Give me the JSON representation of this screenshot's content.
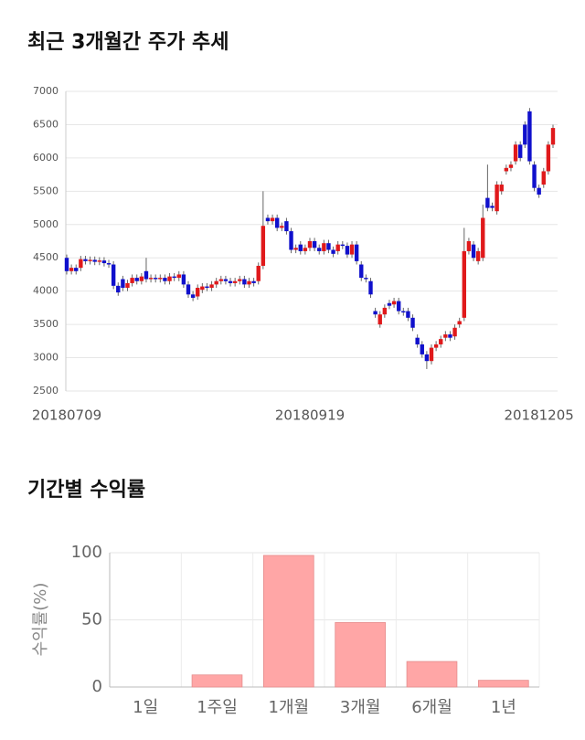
{
  "chart_data": [
    {
      "type": "candlestick",
      "title": "최근 3개월간 주가 추세",
      "categories": [
        "20180709",
        null,
        null,
        null,
        null,
        null,
        null,
        null,
        null,
        null,
        null,
        null,
        null,
        null,
        null,
        null,
        null,
        null,
        null,
        null,
        null,
        null,
        null,
        null,
        null,
        null,
        null,
        null,
        null,
        null,
        null,
        null,
        null,
        null,
        null,
        null,
        null,
        null,
        null,
        null,
        null,
        null,
        null,
        null,
        null,
        null,
        null,
        null,
        null,
        null,
        null,
        null,
        "20180919",
        null,
        null,
        null,
        null,
        null,
        null,
        null,
        null,
        null,
        null,
        null,
        null,
        null,
        null,
        null,
        null,
        null,
        null,
        null,
        null,
        null,
        null,
        null,
        null,
        null,
        null,
        null,
        null,
        null,
        null,
        null,
        null,
        null,
        null,
        null,
        null,
        null,
        null,
        null,
        null,
        null,
        null,
        null,
        null,
        null,
        null,
        null,
        null,
        "20181205",
        null,
        null,
        null
      ],
      "open": [
        4500,
        4300,
        4350,
        4350,
        4480,
        4450,
        4470,
        4440,
        4460,
        4420,
        4400,
        4080,
        4180,
        4050,
        4120,
        4200,
        4150,
        4300,
        4180,
        4200,
        4180,
        4200,
        4150,
        4220,
        4200,
        4250,
        4100,
        3950,
        3920,
        4020,
        4070,
        4050,
        4100,
        4150,
        4180,
        4150,
        4120,
        4150,
        4180,
        4100,
        4150,
        4150,
        4380,
        5100,
        5050,
        5100,
        4950,
        5050,
        4900,
        4620,
        4700,
        4600,
        4650,
        4750,
        4650,
        4600,
        4720,
        4620,
        4600,
        4700,
        4680,
        4550,
        4700,
        4400,
        4200,
        4150,
        3700,
        3500,
        3650,
        3820,
        3800,
        3850,
        3700,
        3700,
        3600,
        3300,
        3200,
        3050,
        2950,
        3150,
        3200,
        3300,
        3350,
        3320,
        3500,
        3600,
        4600,
        4700,
        4450,
        4500,
        5400,
        5280,
        5200,
        5500,
        5800,
        5850,
        5950,
        6200,
        6500,
        6700,
        5900,
        5550,
        5600,
        5800,
        6200
      ],
      "high": [
        4550,
        4400,
        4400,
        4530,
        4530,
        4520,
        4520,
        4510,
        4510,
        4470,
        4450,
        4130,
        4230,
        4170,
        4250,
        4250,
        4270,
        4500,
        4250,
        4250,
        4250,
        4250,
        4270,
        4270,
        4300,
        4300,
        4150,
        4000,
        4100,
        4120,
        4120,
        4150,
        4200,
        4230,
        4230,
        4200,
        4200,
        4230,
        4230,
        4200,
        4200,
        4430,
        5500,
        5150,
        5150,
        5150,
        5030,
        5100,
        4950,
        4700,
        4750,
        4700,
        4800,
        4800,
        4700,
        4770,
        4770,
        4670,
        4750,
        4750,
        4730,
        4750,
        4750,
        4450,
        4250,
        4200,
        3750,
        3700,
        3800,
        3870,
        3900,
        3900,
        3750,
        3750,
        3650,
        3350,
        3250,
        3100,
        3200,
        3250,
        3330,
        3400,
        3400,
        3500,
        3600,
        4950,
        4800,
        4750,
        4650,
        5300,
        5900,
        5330,
        5650,
        5650,
        5900,
        5950,
        6250,
        6250,
        6550,
        6750,
        5950,
        5600,
        5850,
        6250,
        6500
      ],
      "low": [
        4250,
        4250,
        4250,
        4300,
        4400,
        4400,
        4390,
        4390,
        4370,
        4350,
        4030,
        3930,
        4000,
        4000,
        4070,
        4100,
        4100,
        4130,
        4130,
        4130,
        4130,
        4100,
        4100,
        4150,
        4150,
        4050,
        3900,
        3850,
        3870,
        3970,
        4000,
        4000,
        4050,
        4100,
        4100,
        4070,
        4070,
        4100,
        4050,
        4050,
        4070,
        4100,
        4330,
        5000,
        5000,
        4900,
        4900,
        4850,
        4570,
        4570,
        4550,
        4550,
        4600,
        4600,
        4550,
        4550,
        4570,
        4510,
        4550,
        4630,
        4500,
        4500,
        4400,
        4150,
        4130,
        3900,
        3600,
        3450,
        3600,
        3730,
        3750,
        3650,
        3630,
        3550,
        3400,
        3150,
        3000,
        2830,
        2900,
        3100,
        3150,
        3250,
        3250,
        3270,
        3450,
        3550,
        4550,
        4450,
        4400,
        4450,
        5200,
        5200,
        5150,
        5450,
        5750,
        5800,
        5900,
        5950,
        6150,
        5900,
        5500,
        5400,
        5550,
        5750,
        6150
      ],
      "close": [
        4300,
        4350,
        4300,
        4480,
        4450,
        4470,
        4440,
        4460,
        4420,
        4400,
        4080,
        3980,
        4050,
        4120,
        4200,
        4150,
        4220,
        4180,
        4200,
        4180,
        4200,
        4150,
        4220,
        4200,
        4250,
        4100,
        3950,
        3900,
        4050,
        4070,
        4050,
        4100,
        4150,
        4180,
        4150,
        4120,
        4150,
        4180,
        4100,
        4150,
        4120,
        4380,
        4980,
        5050,
        5100,
        4950,
        4980,
        4900,
        4620,
        4650,
        4600,
        4650,
        4750,
        4650,
        4600,
        4720,
        4620,
        4560,
        4700,
        4680,
        4550,
        4700,
        4450,
        4200,
        4180,
        3950,
        3650,
        3650,
        3750,
        3780,
        3850,
        3700,
        3680,
        3600,
        3450,
        3200,
        3050,
        2950,
        3150,
        3200,
        3280,
        3350,
        3300,
        3450,
        3550,
        4600,
        4750,
        4500,
        4600,
        5100,
        5250,
        5250,
        5600,
        5600,
        5850,
        5900,
        6200,
        6000,
        6200,
        5950,
        5550,
        5450,
        5800,
        6200,
        6450
      ],
      "up_color": "#e0191b",
      "down_color": "#1010cc",
      "ylim": [
        2500,
        7000
      ],
      "yticks": [
        2500,
        3000,
        3500,
        4000,
        4500,
        5000,
        5500,
        6000,
        6500,
        7000
      ],
      "grid": true
    },
    {
      "type": "bar",
      "title": "기간별 수익률",
      "ylabel": "수익률(%)",
      "categories": [
        "1일",
        "1주일",
        "1개월",
        "3개월",
        "6개월",
        "1년"
      ],
      "values": [
        0,
        9,
        98,
        48,
        19,
        5
      ],
      "color": "#ffa6a6",
      "ylim": [
        0,
        100
      ],
      "yticks": [
        0,
        50,
        100
      ],
      "grid": true
    }
  ]
}
